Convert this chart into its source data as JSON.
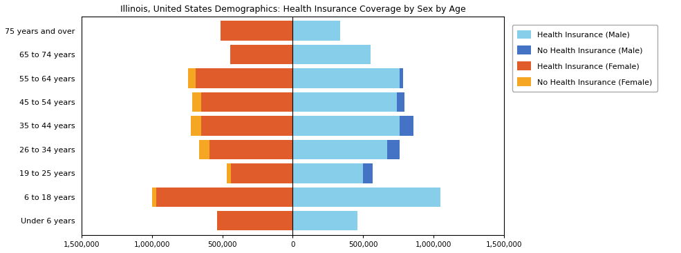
{
  "title": "Illinois, United States Demographics: Health Insurance Coverage by Sex by Age",
  "age_groups": [
    "Under 6 years",
    "6 to 18 years",
    "19 to 25 years",
    "26 to 34 years",
    "35 to 44 years",
    "45 to 54 years",
    "55 to 64 years",
    "65 to 74 years",
    "75 years and over"
  ],
  "health_ins_male": [
    460000,
    1050000,
    500000,
    670000,
    760000,
    740000,
    760000,
    555000,
    335000
  ],
  "no_health_ins_male": [
    0,
    0,
    65000,
    90000,
    95000,
    55000,
    25000,
    0,
    0
  ],
  "health_ins_female": [
    540000,
    970000,
    440000,
    590000,
    650000,
    650000,
    690000,
    445000,
    515000
  ],
  "no_health_ins_female": [
    0,
    30000,
    30000,
    75000,
    75000,
    65000,
    55000,
    0,
    0
  ],
  "color_health_ins_male": "#87CEEB",
  "color_no_health_ins_male": "#4472C4",
  "color_health_ins_female": "#E05C2A",
  "color_no_health_ins_female": "#F5A623",
  "xlim": [
    -1500000,
    1500000
  ],
  "xticks": [
    -1500000,
    -1000000,
    -500000,
    0,
    500000,
    1000000,
    1500000
  ],
  "xtick_labels": [
    "1,500,000",
    "1,000,000",
    "500,000",
    "0",
    "500,000",
    "1,000,000",
    "1,500,000"
  ],
  "legend_labels": [
    "Health Insurance (Male)",
    "No Health Insurance (Male)",
    "Health Insurance (Female)",
    "No Health Insurance (Female)"
  ]
}
